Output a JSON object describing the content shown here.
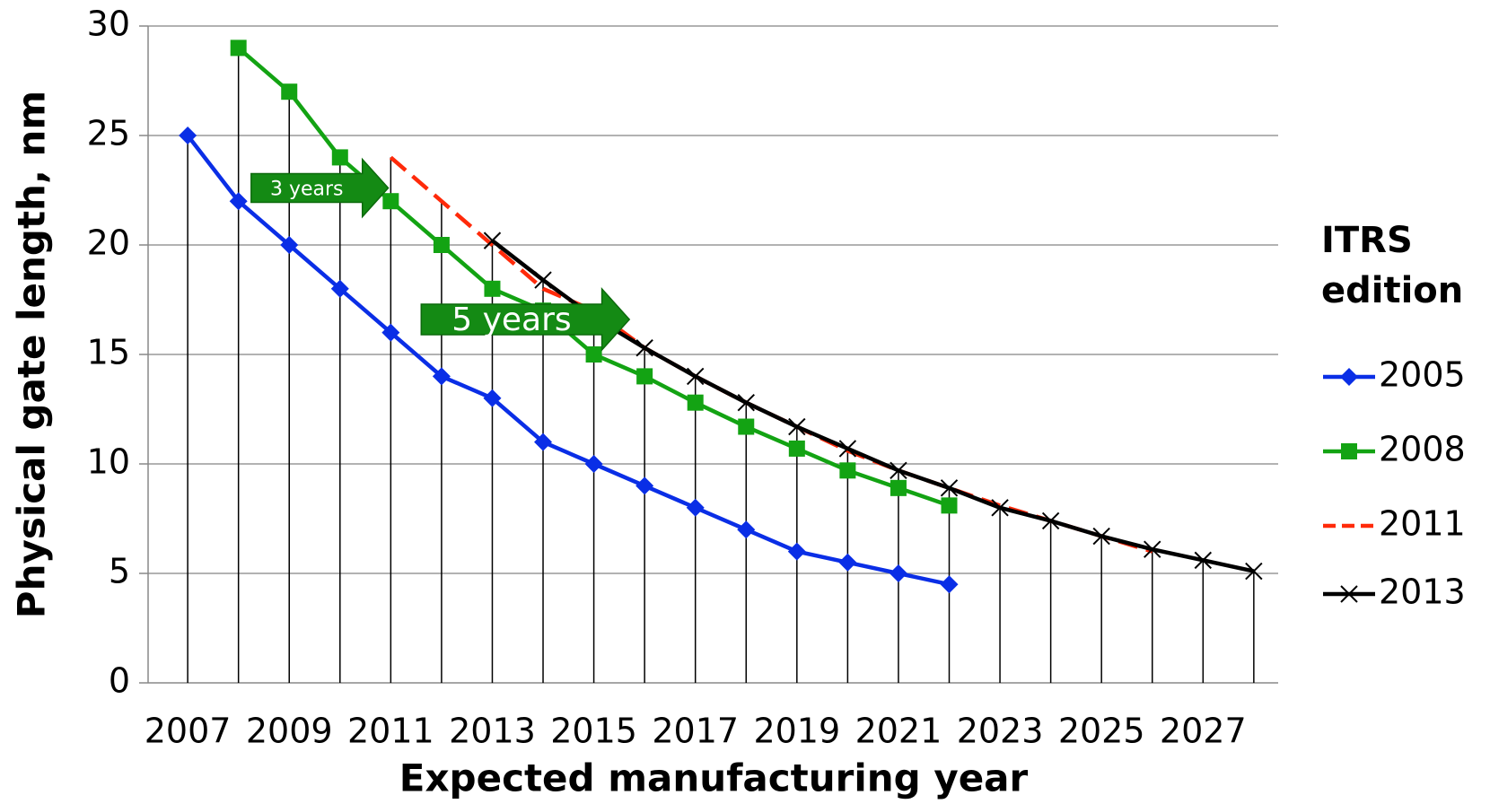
{
  "chart_data": {
    "type": "line",
    "x_label": "Expected manufacturing year",
    "y_label": "Physical gate length, nm",
    "legend_title": "ITRS edition",
    "legend_position": "right",
    "xlim": [
      2006.22,
      2028.48
    ],
    "xticks": [
      2007,
      2009,
      2011,
      2013,
      2015,
      2017,
      2019,
      2021,
      2023,
      2025,
      2027
    ],
    "ylim": [
      0,
      30
    ],
    "yticks": [
      0,
      5,
      10,
      15,
      20,
      25,
      30
    ],
    "grid": true,
    "annotations": [
      "3 years",
      "5 years"
    ],
    "series": [
      {
        "name": "2005",
        "color": "#0a2ee6",
        "marker": "diamond",
        "x": [
          2007,
          2008,
          2009,
          2010,
          2011,
          2012,
          2013,
          2014,
          2015,
          2016,
          2017,
          2018,
          2019,
          2020,
          2021,
          2022
        ],
        "values": [
          25,
          22,
          20,
          18,
          16,
          14,
          13,
          11,
          10,
          9,
          8,
          7,
          6,
          5.5,
          5,
          4.5
        ]
      },
      {
        "name": "2008",
        "color": "#13a313",
        "marker": "square",
        "x": [
          2008,
          2009,
          2010,
          2011,
          2012,
          2013,
          2014,
          2015,
          2016,
          2017,
          2018,
          2019,
          2020,
          2021,
          2022
        ],
        "values": [
          29,
          27,
          24,
          22,
          20,
          18,
          17,
          15,
          14,
          12.8,
          11.7,
          10.7,
          9.7,
          8.9,
          8.1
        ]
      },
      {
        "name": "2011",
        "color": "#ff2a0a",
        "marker": "none",
        "dash": true,
        "x": [
          2011,
          2012,
          2013,
          2014,
          2015,
          2016,
          2017,
          2018,
          2019,
          2020,
          2021,
          2022,
          2023,
          2024,
          2025,
          2026
        ],
        "values": [
          24,
          22,
          20,
          18,
          17,
          15.3,
          14,
          12.8,
          11.7,
          10.6,
          9.7,
          8.9,
          8.1,
          7.4,
          6.7,
          6.0
        ]
      },
      {
        "name": "2013",
        "color": "#000000",
        "marker": "x",
        "x": [
          2013,
          2014,
          2015,
          2016,
          2017,
          2018,
          2019,
          2020,
          2021,
          2022,
          2023,
          2024,
          2025,
          2026,
          2027,
          2028
        ],
        "values": [
          20.2,
          18.4,
          16.7,
          15.3,
          14.0,
          12.8,
          11.7,
          10.7,
          9.7,
          8.9,
          8.0,
          7.4,
          6.7,
          6.1,
          5.6,
          5.1
        ]
      }
    ]
  }
}
